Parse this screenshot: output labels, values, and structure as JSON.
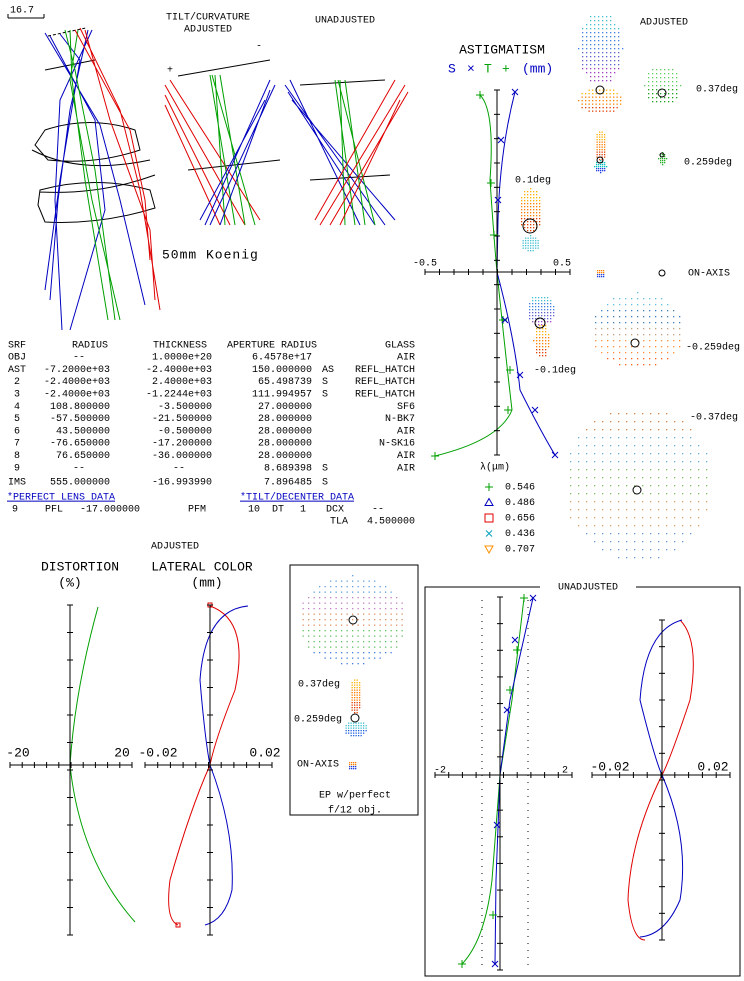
{
  "ray_trace": {
    "scale": "16.7",
    "lens_name": "50mm Koenig"
  },
  "tilt_panel": {
    "title": [
      "TILT/CURVATURE",
      "ADJUSTED"
    ],
    "plus": "+",
    "minus": "-"
  },
  "unadjusted_panel": {
    "title": "UNADJUSTED"
  },
  "astigmatism": {
    "title": "ASTIGMATISM",
    "legend": [
      "S",
      "×",
      "T",
      "+",
      "(mm)"
    ],
    "x_labels": [
      "-0.5",
      "0.5"
    ],
    "spot_labels": [
      "0.1deg",
      "-0.1deg"
    ]
  },
  "adjusted_spots": {
    "title": "ADJUSTED",
    "labels": [
      "0.37deg",
      "0.259deg",
      "ON-AXIS",
      "-0.259deg",
      "-0.37deg"
    ]
  },
  "wavelengths": {
    "header": "λ(μm)",
    "entries": [
      "0.546",
      "0.486",
      "0.656",
      "0.436",
      "0.707"
    ]
  },
  "lens_table": {
    "headers": [
      "SRF",
      "RADIUS",
      "THICKNESS",
      "APERTURE RADIUS",
      "GLASS"
    ],
    "rows": [
      {
        "srf": "OBJ",
        "radius": "--",
        "thickness": "1.0000e+20",
        "aperture": "6.4578e+17",
        "glass": "AIR"
      },
      {
        "srf": "AST",
        "radius": "-7.2000e+03",
        "thickness": "-2.4000e+03",
        "aperture": "150.000000",
        "flag": "AS",
        "glass": "REFL_HATCH"
      },
      {
        "srf": "2",
        "radius": "-2.4000e+03",
        "thickness": "2.4000e+03",
        "aperture": "65.498739",
        "flag": "S",
        "glass": "REFL_HATCH"
      },
      {
        "srf": "3",
        "radius": "-2.4000e+03",
        "thickness": "-1.2244e+03",
        "aperture": "111.994957",
        "flag": "S",
        "glass": "REFL_HATCH"
      },
      {
        "srf": "4",
        "radius": "108.800000",
        "thickness": "-3.500000",
        "aperture": "27.000000",
        "glass": "SF6"
      },
      {
        "srf": "5",
        "radius": "-57.500000",
        "thickness": "-21.500000",
        "aperture": "28.000000",
        "glass": "N-BK7"
      },
      {
        "srf": "6",
        "radius": "43.500000",
        "thickness": "-0.500000",
        "aperture": "28.000000",
        "glass": "AIR"
      },
      {
        "srf": "7",
        "radius": "-76.650000",
        "thickness": "-17.200000",
        "aperture": "28.000000",
        "glass": "N-SK16"
      },
      {
        "srf": "8",
        "radius": "76.650000",
        "thickness": "-36.000000",
        "aperture": "28.000000",
        "glass": "AIR"
      },
      {
        "srf": "9",
        "radius": "--",
        "thickness": "--",
        "aperture": "8.689398",
        "flag": "S",
        "glass": "AIR"
      },
      {
        "srf": "IMS",
        "radius": "555.000000",
        "thickness": "-16.993990",
        "aperture": "7.896485",
        "flag": "S"
      }
    ]
  },
  "perfect_lens": {
    "link": "*PERFECT LENS DATA",
    "row": [
      "9",
      "PFL",
      "-17.000000",
      "PFM"
    ]
  },
  "tilt_decenter": {
    "link": "*TILT/DECENTER DATA",
    "row": [
      "10",
      "DT",
      "1",
      "DCX",
      "--"
    ],
    "row2": [
      "TLA",
      "4.500000"
    ]
  },
  "adjusted_plots": {
    "title": "ADJUSTED",
    "distortion": [
      "DISTORTION",
      "(%)"
    ],
    "lateral_color": [
      "LATERAL COLOR",
      "(mm)"
    ],
    "distortion_labels": [
      "-20",
      "20"
    ],
    "lateral_labels": [
      "-0.02",
      "0.02"
    ]
  },
  "ep_box": {
    "labels": [
      "0.37deg",
      "0.259deg",
      "ON-AXIS"
    ],
    "caption": [
      "EP w/perfect",
      "f/12 obj."
    ]
  },
  "unadjusted_plots": {
    "title": "UNADJUSTED",
    "astig_labels": [
      "-2",
      "2"
    ],
    "lateral_labels": [
      "-0.02",
      "0.02"
    ]
  }
}
